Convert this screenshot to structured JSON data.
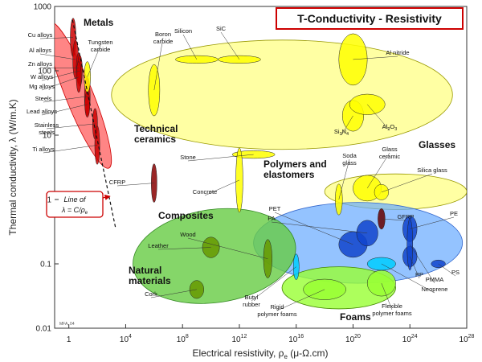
{
  "chart_data": {
    "type": "scatter",
    "title": "T-Conductivity - Resistivity",
    "xlabel": "Electrical resistivity, ρ",
    "xlabel_sub": "e",
    "xlabel_unit": " (μ-Ω.cm)",
    "ylabel": "Thermal conductivity, λ (W/m.K)",
    "x_scale": "log",
    "y_scale": "log",
    "xlim": [
      0.1,
      10000000000000000000000000000
    ],
    "ylim": [
      0.01,
      1000
    ],
    "x_ticks": [
      {
        "value": 1,
        "label": "1"
      },
      {
        "value": 10000,
        "base": "10",
        "exp": "4"
      },
      {
        "value": 100000000,
        "base": "10",
        "exp": "8"
      },
      {
        "value": 1000000000000,
        "base": "10",
        "exp": "12"
      },
      {
        "value": 10000000000000000,
        "base": "10",
        "exp": "16"
      },
      {
        "value": 100000000000000000000,
        "base": "10",
        "exp": "20"
      },
      {
        "value": 1000000000000000000000000,
        "base": "10",
        "exp": "24"
      },
      {
        "value": 10000000000000000000000000000,
        "base": "10",
        "exp": "28"
      }
    ],
    "y_ticks": [
      {
        "value": 0.01,
        "label": "0.01"
      },
      {
        "value": 0.1,
        "label": "0.1"
      },
      {
        "value": 1,
        "label": "1"
      },
      {
        "value": 10,
        "label": "10"
      },
      {
        "value": 100,
        "label": "100"
      },
      {
        "value": 1000,
        "label": "1000"
      }
    ],
    "guide_line": {
      "label": "Line of",
      "formula": "λ = C/ρ",
      "formula_sub": "e",
      "from": [
        1.8,
        620
      ],
      "to": [
        2000,
        0.35
      ]
    },
    "credit": "MFA, 04",
    "groups": [
      {
        "name": "Technical ceramics",
        "color": "#ffff66",
        "stroke": "#999900",
        "opacity": 0.6,
        "x": [
          1000,
          1000000000000000000000000000
        ],
        "y": [
          6,
          300
        ],
        "rotate": 0
      },
      {
        "name": "Glasses",
        "color": "#ffff66",
        "stroke": "#999900",
        "opacity": 0.6,
        "x": 1e+18,
        "x2": 1e+28,
        "y": [
          0.7,
          2.5
        ],
        "rotate": 0
      },
      {
        "name": "Polymers and elastomers",
        "color": "#66aaff",
        "stroke": "#3366cc",
        "opacity": 0.7,
        "x": [
          10000000000000.0,
          5e+27
        ],
        "y": [
          0.05,
          0.9
        ],
        "rotate": 0
      },
      {
        "name": "Natural materials",
        "color": "#66cc44",
        "stroke": "#338822",
        "opacity": 0.8,
        "x": [
          30000,
          1e+16
        ],
        "y": [
          0.025,
          0.7
        ],
        "rotate": -8
      },
      {
        "name": "Foams",
        "color": "#99ff33",
        "stroke": "#448800",
        "opacity": 0.8,
        "x": [
          1000000000000000.0,
          1e+23
        ],
        "y": [
          0.02,
          0.09
        ],
        "rotate": 0
      },
      {
        "name": "Metals",
        "color": "#ff6666",
        "stroke": "#cc0000",
        "opacity": 0.8,
        "x": [
          0.6,
          50
        ],
        "y": [
          2.5,
          700
        ],
        "rotate": -22
      }
    ],
    "materials": [
      {
        "name": "Cu alloys",
        "x": 2,
        "y": 330,
        "color": "#cc0000",
        "size": [
          0.4,
          0.15
        ]
      },
      {
        "name": "Al alloys",
        "x": 3,
        "y": 150,
        "color": "#cc0000",
        "size": [
          0.4,
          0.15
        ]
      },
      {
        "name": "Zn alloys",
        "x": 5,
        "y": 110,
        "color": "#cc0000",
        "size": [
          0.35,
          0.12
        ]
      },
      {
        "name": "W alloys",
        "x": 6,
        "y": 100,
        "color": "#cc0000",
        "size": [
          0.35,
          0.12
        ]
      },
      {
        "name": "Mg alloys",
        "x": 5,
        "y": 80,
        "color": "#cc0000",
        "size": [
          0.35,
          0.12
        ]
      },
      {
        "name": "Steels",
        "x": 20,
        "y": 40,
        "color": "#cc0000",
        "size": [
          0.4,
          0.15
        ]
      },
      {
        "name": "Lead alloys",
        "x": 20,
        "y": 30,
        "color": "#cc0000",
        "size": [
          0.35,
          0.1
        ]
      },
      {
        "name": "Stainless steels",
        "x": 70,
        "y": 15,
        "color": "#cc0000",
        "size": [
          0.35,
          0.12
        ]
      },
      {
        "name": "Ti alloys",
        "x": 100,
        "y": 7,
        "color": "#cc0000",
        "size": [
          0.35,
          0.15
        ]
      },
      {
        "name": "Tungsten carbide",
        "x": 20,
        "y": 80,
        "color": "#ffff00",
        "size": [
          0.45,
          0.12
        ]
      },
      {
        "name": "Boron carbide",
        "x": 1000000,
        "y": 50,
        "color": "#ffff00",
        "size": [
          0.8,
          0.2
        ]
      },
      {
        "name": "Silicon",
        "x": 1000000000,
        "y": 150,
        "color": "#ffff00",
        "size": [
          3,
          0.03
        ]
      },
      {
        "name": "SiC",
        "x": 1000000000000,
        "y": 150,
        "color": "#ffff00",
        "size": [
          3,
          0.03
        ]
      },
      {
        "name": "Al nitride",
        "x": 1e+20,
        "y": 150,
        "color": "#ffff00",
        "size": [
          2,
          0.2
        ]
      },
      {
        "name": "Si3N4",
        "x": 1e+20,
        "y": 20,
        "color": "#ffff00",
        "size": [
          1.5,
          0.12
        ]
      },
      {
        "name": "Al2O3",
        "x": 1e+21,
        "y": 30,
        "color": "#ffff00",
        "size": [
          2.5,
          0.08
        ]
      },
      {
        "name": "Stone",
        "x": 10000000000000.0,
        "y": 5,
        "color": "#ffff00",
        "size": [
          3,
          0.03
        ]
      },
      {
        "name": "Concrete",
        "x": 1000000000000,
        "y": 2,
        "color": "#ffff00",
        "size": [
          0.5,
          0.25
        ]
      },
      {
        "name": "Soda glass",
        "x": 1e+19,
        "y": 1,
        "color": "#ffff00",
        "size": [
          0.5,
          0.12
        ]
      },
      {
        "name": "Glass ceramic",
        "x": 1e+21,
        "y": 1.5,
        "color": "#ffff00",
        "size": [
          2,
          0.1
        ]
      },
      {
        "name": "Silica glass",
        "x": 1e+22,
        "y": 1.3,
        "color": "#ffff00",
        "size": [
          1,
          0.06
        ]
      },
      {
        "name": "CFRP",
        "x": 1000000,
        "y": 1.8,
        "color": "#880000",
        "size": [
          0.4,
          0.15
        ]
      },
      {
        "name": "PET",
        "x": 1e+20,
        "y": 0.2,
        "color": "#1144cc",
        "size": [
          2,
          0.1
        ]
      },
      {
        "name": "PA",
        "x": 1e+21,
        "y": 0.3,
        "color": "#1144cc",
        "size": [
          1.5,
          0.1
        ]
      },
      {
        "name": "GFRP",
        "x": 1e+22,
        "y": 0.5,
        "color": "#660000",
        "size": [
          0.5,
          0.08
        ]
      },
      {
        "name": "PE",
        "x": 1e+24,
        "y": 0.35,
        "color": "#1144cc",
        "size": [
          1,
          0.1
        ]
      },
      {
        "name": "PP",
        "x": 1e+24,
        "y": 0.13,
        "color": "#1144cc",
        "size": [
          1,
          0.08
        ]
      },
      {
        "name": "PMMA",
        "x": 1e+24,
        "y": 0.2,
        "color": "#1144cc",
        "size": [
          0.4,
          0.2
        ]
      },
      {
        "name": "PS",
        "x": 1e+26,
        "y": 0.1,
        "color": "#1144cc",
        "size": [
          1,
          0.03
        ]
      },
      {
        "name": "Neoprene",
        "x": 1e+22,
        "y": 0.1,
        "color": "#00ccff",
        "size": [
          2,
          0.05
        ]
      },
      {
        "name": "Butyl rubber",
        "x": 1e+16,
        "y": 0.09,
        "color": "#00ccff",
        "size": [
          0.4,
          0.1
        ]
      },
      {
        "name": "Wood",
        "x": 100000000000000.0,
        "y": 0.12,
        "color": "#669900",
        "size": [
          0.6,
          0.15
        ]
      },
      {
        "name": "Leather",
        "x": 10000000000,
        "y": 0.18,
        "color": "#669900",
        "size": [
          1.2,
          0.08
        ]
      },
      {
        "name": "Cork",
        "x": 1000000000,
        "y": 0.04,
        "color": "#669900",
        "size": [
          1,
          0.07
        ]
      },
      {
        "name": "Rigid polymer foams",
        "x": 1e+18,
        "y": 0.04,
        "color": "#99ff33",
        "size": [
          3,
          0.08
        ]
      },
      {
        "name": "Flexible polymer foams",
        "x": 1e+22,
        "y": 0.05,
        "color": "#99ff33",
        "size": [
          2,
          0.1
        ]
      }
    ]
  }
}
